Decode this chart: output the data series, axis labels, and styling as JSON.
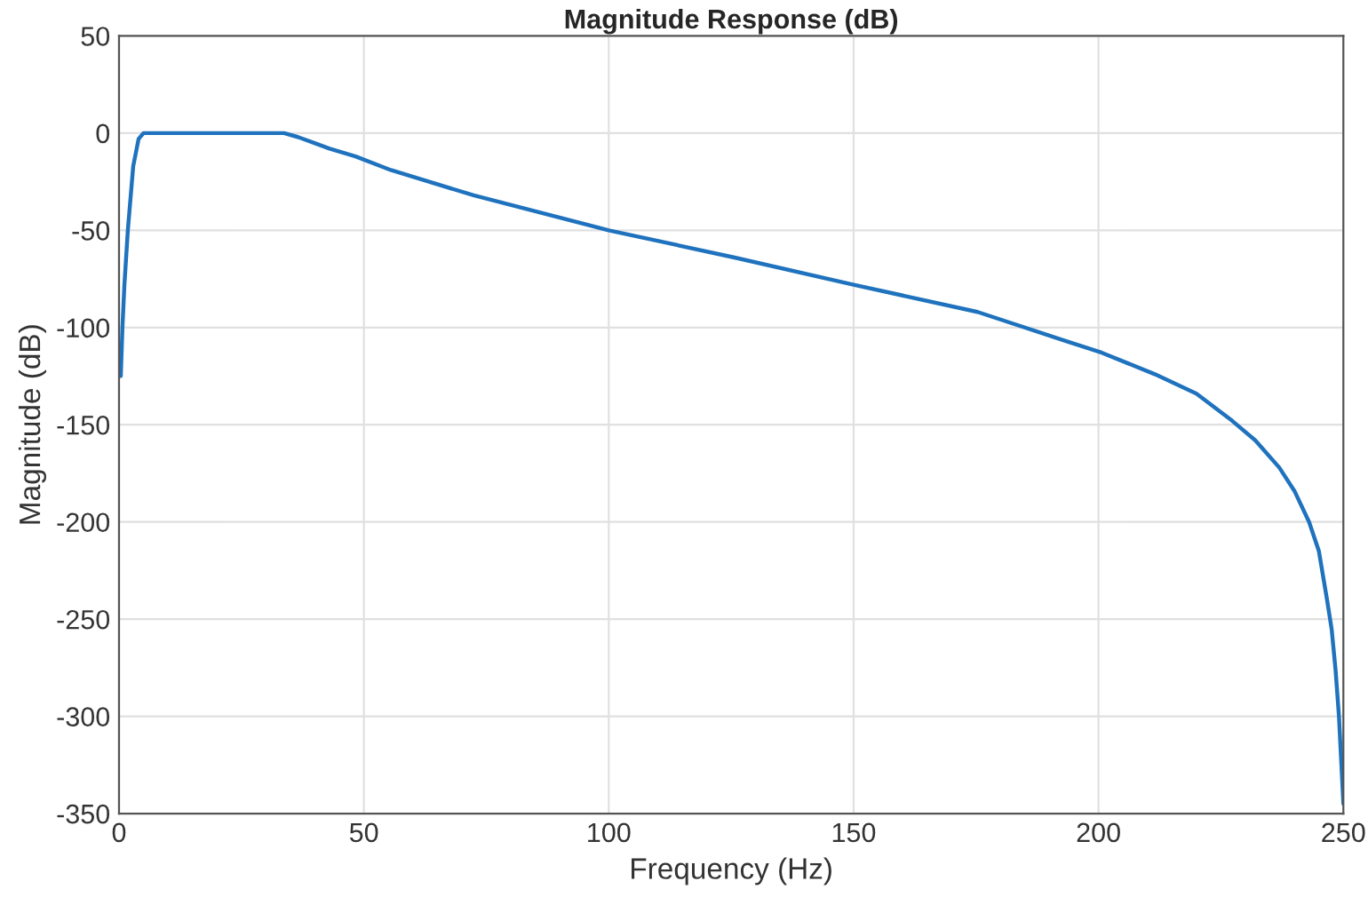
{
  "chart_data": {
    "type": "line",
    "title": "Magnitude Response (dB)",
    "xlabel": "Frequency (Hz)",
    "ylabel": "Magnitude (dB)",
    "series": [
      {
        "color": "#1f72bd",
        "x": [
          0.36,
          0.7,
          1.1,
          1.8,
          2.9,
          4.0,
          5.0,
          10,
          20,
          30,
          33.7,
          36.5,
          39.8,
          43,
          48.3,
          55.5,
          72.4,
          100,
          125.7,
          150,
          175.3,
          193.4,
          200.7,
          211.5,
          220,
          227.3,
          232,
          236.9,
          240,
          243,
          245,
          246.6,
          247.6,
          248.4,
          249.1,
          249.6,
          250
        ],
        "values": [
          -125,
          -100,
          -78,
          -50,
          -17,
          -3,
          0,
          0,
          0,
          0,
          0,
          -2,
          -5,
          -8,
          -12,
          -19,
          -32,
          -50,
          -64,
          -78,
          -92,
          -107,
          -113,
          -124,
          -134,
          -148,
          -158,
          -172,
          -184,
          -200,
          -215,
          -239,
          -255,
          -276,
          -300,
          -325,
          -345
        ]
      }
    ],
    "xlim": [
      0,
      250
    ],
    "ylim": [
      -350,
      50
    ],
    "xticks": [
      0,
      50,
      100,
      150,
      200,
      250
    ],
    "yticks": [
      50,
      0,
      -50,
      -100,
      -150,
      -200,
      -250,
      -300,
      -350
    ],
    "grid": true,
    "line_style": "solid",
    "marker": "none"
  }
}
